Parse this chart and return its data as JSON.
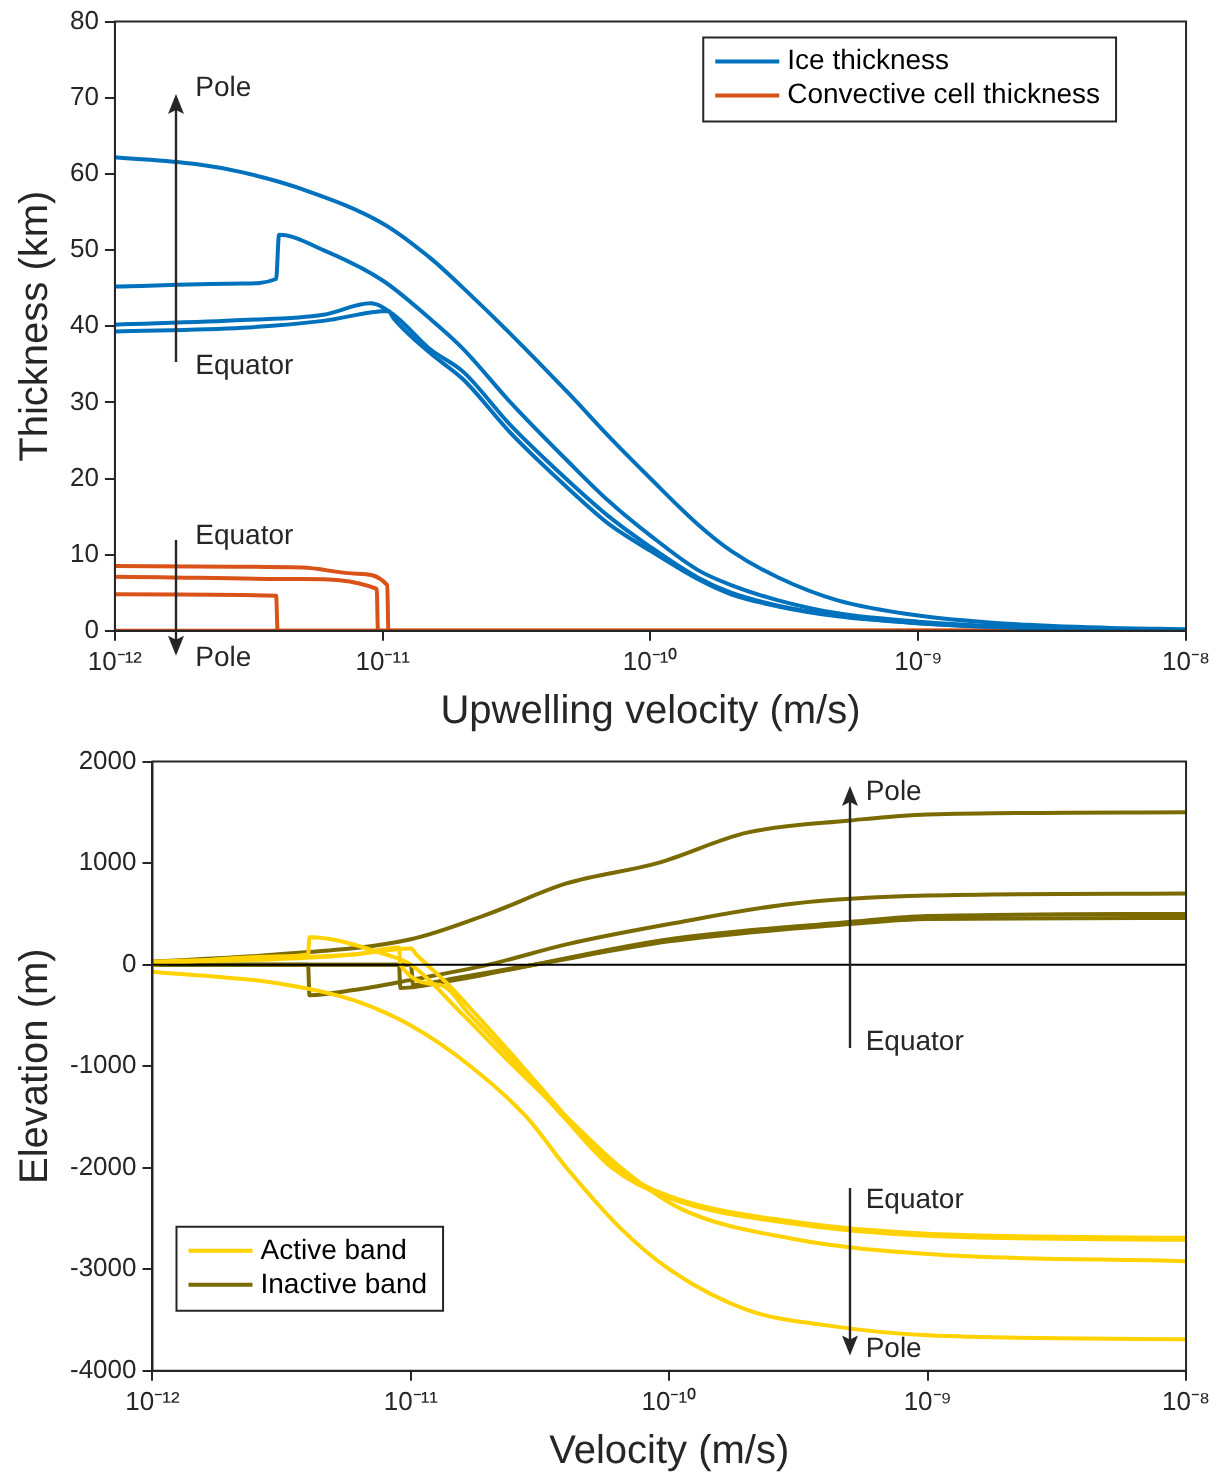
{
  "chart_data": [
    {
      "type": "line",
      "xlabel": "Upwelling velocity (m/s)",
      "ylabel": "Thickness (km)",
      "log": "x",
      "grid": false,
      "legend": "top right",
      "marker": "none",
      "line_style": "solid",
      "xlim": [
        1e-12,
        1e-08
      ],
      "xticks": [
        {
          "value": 1e-12,
          "label": "10⁻¹²"
        },
        {
          "value": 1e-11,
          "label": "10⁻¹¹"
        },
        {
          "value": 1e-10,
          "label": "10⁻¹⁰"
        },
        {
          "value": 1e-09,
          "label": "10⁻⁹"
        },
        {
          "value": 1e-08,
          "label": "10⁻⁸"
        }
      ],
      "ylim": [
        0,
        80
      ],
      "yticks": [
        0,
        10,
        20,
        30,
        40,
        50,
        60,
        70,
        80
      ],
      "series": [
        {
          "name": "Ice thickness",
          "color": "#0072bd",
          "x": [
            1e-12,
            2e-12,
            3e-12,
            5e-12,
            1e-11,
            1.5e-11,
            2e-11,
            3e-11,
            5e-11,
            7e-11,
            1e-10,
            1.5e-10,
            2e-10,
            3e-10,
            5e-10,
            1e-09,
            2e-09,
            5e-09,
            1e-08
          ],
          "values": [
            62.2,
            61.3,
            60.2,
            58,
            53.5,
            49,
            45,
            39,
            31,
            25.5,
            20,
            14,
            10.5,
            7,
            4,
            2,
            1,
            0.4,
            0.2
          ]
        },
        {
          "color": "#0072bd",
          "x": [
            1e-12,
            3e-12,
            4e-12,
            4.1e-12,
            6e-12,
            1e-11,
            1.5e-11,
            2e-11,
            3e-11,
            5e-11,
            7e-11,
            1e-10,
            1.5e-10,
            2e-10,
            3e-10,
            5e-10,
            1e-09,
            2e-09,
            5e-09,
            1e-08
          ],
          "values": [
            45.2,
            45.6,
            46.2,
            52,
            50,
            46,
            41,
            37,
            30,
            22,
            17,
            12.5,
            8,
            6,
            4,
            2.3,
            1.2,
            0.6,
            0.2,
            0.1
          ]
        },
        {
          "color": "#0072bd",
          "x": [
            1e-12,
            3e-12,
            6e-12,
            9e-12,
            1.1e-11,
            1.5e-11,
            2e-11,
            3e-11,
            5e-11,
            7e-11,
            1e-10,
            1.5e-10,
            2e-10,
            3e-10,
            5e-10,
            1e-09,
            2e-09,
            5e-09,
            1e-08
          ],
          "values": [
            40.2,
            40.8,
            41.5,
            43,
            41.5,
            37,
            34,
            27,
            19.5,
            15,
            11,
            7,
            5,
            3.3,
            2,
            1,
            0.5,
            0.2,
            0.1
          ]
        },
        {
          "color": "#0072bd",
          "x": [
            1e-12,
            3e-12,
            6e-12,
            1.05e-11,
            1.1e-11,
            1.5e-11,
            2e-11,
            3e-11,
            5e-11,
            7e-11,
            1e-10,
            1.5e-10,
            2e-10,
            3e-10,
            5e-10,
            1e-09,
            2e-09,
            5e-09,
            1e-08
          ],
          "values": [
            39.3,
            39.8,
            40.7,
            42,
            41,
            36.5,
            33,
            26,
            18.5,
            14,
            10.5,
            6.8,
            4.8,
            3.2,
            1.9,
            1,
            0.5,
            0.2,
            0.1
          ]
        },
        {
          "name": "Convective cell thickness",
          "color": "#d95319",
          "x": [
            1e-12,
            5e-12,
            8e-12,
            1.04e-11,
            1.05e-11,
            1e-08
          ],
          "values": [
            8.5,
            8.3,
            7.5,
            6,
            0,
            0
          ]
        },
        {
          "color": "#d95319",
          "x": [
            1e-12,
            5e-12,
            9.5e-12,
            9.6e-12,
            1e-08
          ],
          "values": [
            7.1,
            6.8,
            5.5,
            0,
            0
          ]
        },
        {
          "color": "#d95319",
          "x": [
            1e-12,
            4e-12,
            4.05e-12,
            1e-08
          ],
          "values": [
            4.8,
            4.6,
            0,
            0
          ]
        },
        {
          "color": "#d95319",
          "x": [
            1e-12,
            1e-08
          ],
          "values": [
            0,
            0
          ]
        }
      ],
      "annotations": [
        "Pole",
        "Equator",
        "Equator",
        "Pole"
      ]
    },
    {
      "type": "line",
      "xlabel": "Velocity (m/s)",
      "ylabel": "Elevation (m)",
      "log": "x",
      "grid": false,
      "legend": "bottom left",
      "marker": "none",
      "line_style": "solid",
      "xlim": [
        1e-12,
        1e-08
      ],
      "xticks": [
        {
          "value": 1e-12,
          "label": "10⁻¹²"
        },
        {
          "value": 1e-11,
          "label": "10⁻¹¹"
        },
        {
          "value": 1e-10,
          "label": "10⁻¹⁰"
        },
        {
          "value": 1e-09,
          "label": "10⁻⁹"
        },
        {
          "value": 1e-08,
          "label": "10⁻⁸"
        }
      ],
      "ylim": [
        -4000,
        2000
      ],
      "yticks": [
        -4000,
        -3000,
        -2000,
        -1000,
        0,
        1000,
        2000
      ],
      "ref_lines": [
        {
          "axis": "y",
          "value": 0,
          "color": "#000000"
        }
      ],
      "series": [
        {
          "name": "Active band",
          "color": "#ffd200",
          "x": [
            1e-12,
            3e-12,
            6e-12,
            1e-11,
            1.7e-11,
            2.8e-11,
            4e-11,
            6.5e-11,
            1e-10,
            2e-10,
            4e-10,
            1e-09,
            1e-08
          ],
          "values": [
            -70,
            -180,
            -350,
            -600,
            -1000,
            -1500,
            -2000,
            -2600,
            -3000,
            -3400,
            -3550,
            -3650,
            -3690
          ]
        },
        {
          "color": "#ffd200",
          "x": [
            1e-12,
            3e-12,
            4e-12,
            4.05e-12,
            8e-12,
            1e-11,
            1.6e-11,
            2.5e-11,
            4e-11,
            6.5e-11,
            1.1e-10,
            3e-10,
            1e-09,
            1e-08
          ],
          "values": [
            0,
            80,
            100,
            270,
            100,
            0,
            -500,
            -1000,
            -1500,
            -2000,
            -2400,
            -2700,
            -2850,
            -2920
          ]
        },
        {
          "color": "#ffd200",
          "x": [
            1e-12,
            6e-12,
            9e-12,
            9.1e-12,
            1.3e-11,
            1.7e-11,
            2.6e-11,
            3.9e-11,
            6e-11,
            1e-10,
            3e-10,
            1e-09,
            1e-08
          ],
          "values": [
            20,
            100,
            170,
            0,
            -200,
            -500,
            -1000,
            -1500,
            -2000,
            -2300,
            -2550,
            -2670,
            -2710
          ]
        },
        {
          "color": "#ffd200",
          "x": [
            1e-12,
            6e-12,
            1e-11,
            1.05e-11,
            1.4e-11,
            1.8e-11,
            2.7e-11,
            4e-11,
            6.2e-11,
            1e-10,
            3e-10,
            1e-09,
            1e-08
          ],
          "values": [
            30,
            100,
            160,
            100,
            -200,
            -500,
            -1000,
            -1500,
            -2000,
            -2280,
            -2530,
            -2650,
            -2690
          ]
        },
        {
          "name": "Inactive band",
          "color": "#7a6a00",
          "x": [
            1e-12,
            3e-12,
            1e-11,
            2e-11,
            4e-11,
            9e-11,
            2e-10,
            5e-10,
            1e-09,
            1e-08
          ],
          "values": [
            30,
            100,
            250,
            500,
            800,
            1000,
            1300,
            1420,
            1480,
            1500
          ]
        },
        {
          "color": "#7a6a00",
          "x": [
            1e-12,
            4e-12,
            4.05e-12,
            6e-12,
            1e-11,
            2e-11,
            4e-11,
            1e-10,
            3e-10,
            1e-09,
            1e-08
          ],
          "values": [
            0,
            0,
            -300,
            -250,
            -150,
            0,
            200,
            400,
            600,
            680,
            700
          ]
        },
        {
          "color": "#7a6a00",
          "x": [
            1e-12,
            9e-12,
            9.1e-12,
            1.5e-11,
            3e-11,
            1e-10,
            5e-10,
            1e-09,
            1e-08
          ],
          "values": [
            0,
            0,
            -230,
            -150,
            0,
            250,
            420,
            480,
            500
          ]
        },
        {
          "color": "#7a6a00",
          "x": [
            1e-12,
            1e-11,
            1.02e-11,
            1.5e-11,
            3e-11,
            1e-10,
            5e-10,
            1e-09,
            1e-08
          ],
          "values": [
            0,
            0,
            -200,
            -130,
            0,
            230,
            400,
            450,
            460
          ]
        }
      ],
      "annotations": [
        "Pole",
        "Equator",
        "Equator",
        "Pole"
      ]
    }
  ]
}
